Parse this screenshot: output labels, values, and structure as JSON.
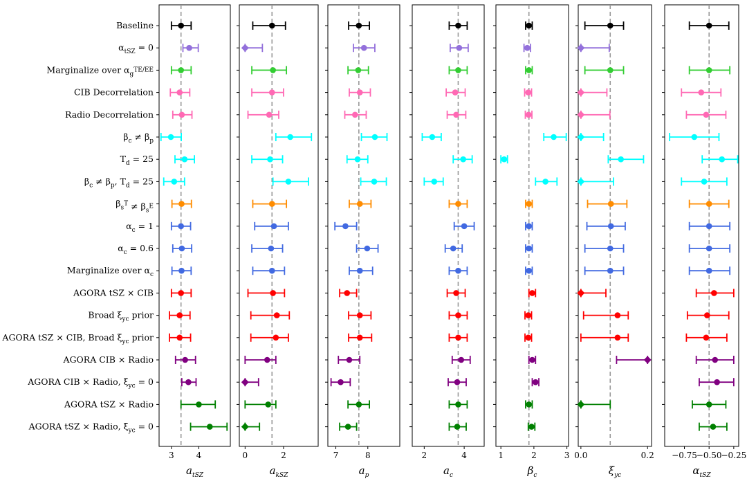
{
  "chart_data": {
    "type": "forest",
    "rows": [
      "Baseline",
      "α_tSZ = 0",
      "Marginalize over α_g^TE/EE",
      "CIB Decorrelation",
      "Radio Decorrelation",
      "β_c ≠ β_p",
      "T_d = 25",
      "β_c ≠ β_p, T_d = 25",
      "β_s^T ≠ β_s^E",
      "α_c = 1",
      "α_c = 0.6",
      "Marginalize over α_c",
      "AGORA tSZ × CIB",
      "Broad ξ_yc prior",
      "AGORA tSZ × CIB, Broad ξ_yc prior",
      "AGORA CIB × Radio",
      "AGORA CIB × Radio, ξ_yc = 0",
      "AGORA tSZ × Radio",
      "AGORA tSZ × Radio, ξ_yc = 0"
    ],
    "row_colors": [
      "#000000",
      "#9370db",
      "#32cd32",
      "#ff69b4",
      "#ff69b4",
      "#00ffff",
      "#00ffff",
      "#00ffff",
      "#ff8c00",
      "#4169e1",
      "#4169e1",
      "#4169e1",
      "#ff0000",
      "#ff0000",
      "#ff0000",
      "#800080",
      "#800080",
      "#008000",
      "#008000"
    ],
    "panels": [
      {
        "xlabel": "a_tSZ",
        "xlim": [
          2.55,
          5.15
        ],
        "ticks": [
          3,
          4
        ],
        "tick_labels": [
          "3",
          "4"
        ],
        "ref": 3.35,
        "points": [
          {
            "v": 3.35,
            "lo": 3.0,
            "hi": 3.72,
            "marker": "o"
          },
          {
            "v": 3.65,
            "lo": 3.42,
            "hi": 3.98,
            "marker": "o"
          },
          {
            "v": 3.35,
            "lo": 3.0,
            "hi": 3.72,
            "marker": "o"
          },
          {
            "v": 3.3,
            "lo": 2.96,
            "hi": 3.67,
            "marker": "o"
          },
          {
            "v": 3.38,
            "lo": 3.05,
            "hi": 3.75,
            "marker": "o"
          },
          {
            "v": 2.98,
            "lo": 2.62,
            "hi": 3.36,
            "marker": "o"
          },
          {
            "v": 3.48,
            "lo": 3.13,
            "hi": 3.84,
            "marker": "o"
          },
          {
            "v": 3.1,
            "lo": 2.72,
            "hi": 3.48,
            "marker": "o"
          },
          {
            "v": 3.37,
            "lo": 3.02,
            "hi": 3.73,
            "marker": "o"
          },
          {
            "v": 3.35,
            "lo": 3.0,
            "hi": 3.7,
            "marker": "o"
          },
          {
            "v": 3.38,
            "lo": 3.05,
            "hi": 3.74,
            "marker": "o"
          },
          {
            "v": 3.37,
            "lo": 3.02,
            "hi": 3.72,
            "marker": "o"
          },
          {
            "v": 3.35,
            "lo": 3.0,
            "hi": 3.72,
            "marker": "o"
          },
          {
            "v": 3.3,
            "lo": 2.93,
            "hi": 3.68,
            "marker": "o"
          },
          {
            "v": 3.3,
            "lo": 2.93,
            "hi": 3.7,
            "marker": "o"
          },
          {
            "v": 3.5,
            "lo": 3.15,
            "hi": 3.88,
            "marker": "o"
          },
          {
            "v": 3.62,
            "lo": 3.38,
            "hi": 3.9,
            "marker": "o"
          },
          {
            "v": 4.0,
            "lo": 3.35,
            "hi": 4.6,
            "marker": "o"
          },
          {
            "v": 4.4,
            "lo": 3.7,
            "hi": 5.03,
            "marker": "o"
          }
        ]
      },
      {
        "xlabel": "a_kSZ",
        "xlim": [
          -0.3,
          3.8
        ],
        "ticks": [
          0,
          2
        ],
        "tick_labels": [
          "0",
          "2"
        ],
        "ref": 1.4,
        "points": [
          {
            "v": 1.4,
            "lo": 0.4,
            "hi": 2.1,
            "marker": "o"
          },
          {
            "v": 0.0,
            "lo": 0.0,
            "hi": 0.9,
            "marker": "d"
          },
          {
            "v": 1.45,
            "lo": 0.35,
            "hi": 2.15,
            "marker": "o"
          },
          {
            "v": 1.4,
            "lo": 0.35,
            "hi": 2.0,
            "marker": "o"
          },
          {
            "v": 1.25,
            "lo": 0.15,
            "hi": 1.75,
            "marker": "o"
          },
          {
            "v": 2.35,
            "lo": 1.6,
            "hi": 3.45,
            "marker": "o"
          },
          {
            "v": 1.3,
            "lo": 0.35,
            "hi": 1.95,
            "marker": "o"
          },
          {
            "v": 2.25,
            "lo": 1.45,
            "hi": 3.3,
            "marker": "o"
          },
          {
            "v": 1.4,
            "lo": 0.4,
            "hi": 2.15,
            "marker": "o"
          },
          {
            "v": 1.5,
            "lo": 0.5,
            "hi": 2.25,
            "marker": "o"
          },
          {
            "v": 1.35,
            "lo": 0.35,
            "hi": 1.95,
            "marker": "o"
          },
          {
            "v": 1.4,
            "lo": 0.4,
            "hi": 2.05,
            "marker": "o"
          },
          {
            "v": 1.45,
            "lo": 0.15,
            "hi": 2.05,
            "marker": "o"
          },
          {
            "v": 1.65,
            "lo": 0.3,
            "hi": 2.3,
            "marker": "o"
          },
          {
            "v": 1.6,
            "lo": 0.3,
            "hi": 2.25,
            "marker": "o"
          },
          {
            "v": 1.15,
            "lo": 0.0,
            "hi": 1.6,
            "marker": "o"
          },
          {
            "v": 0.0,
            "lo": 0.0,
            "hi": 0.7,
            "marker": "d"
          },
          {
            "v": 1.2,
            "lo": 0.0,
            "hi": 1.6,
            "marker": "o"
          },
          {
            "v": 0.0,
            "lo": 0.0,
            "hi": 0.75,
            "marker": "d"
          }
        ]
      },
      {
        "xlabel": "a_p",
        "xlim": [
          6.75,
          9.0
        ],
        "ticks": [
          7,
          8
        ],
        "tick_labels": [
          "7",
          "8"
        ],
        "ref": 7.72,
        "points": [
          {
            "v": 7.72,
            "lo": 7.4,
            "hi": 8.05,
            "marker": "o"
          },
          {
            "v": 7.88,
            "lo": 7.55,
            "hi": 8.22,
            "marker": "o"
          },
          {
            "v": 7.7,
            "lo": 7.38,
            "hi": 8.02,
            "marker": "o"
          },
          {
            "v": 7.75,
            "lo": 7.42,
            "hi": 8.08,
            "marker": "o"
          },
          {
            "v": 7.6,
            "lo": 7.28,
            "hi": 7.95,
            "marker": "o"
          },
          {
            "v": 8.22,
            "lo": 7.8,
            "hi": 8.6,
            "marker": "o"
          },
          {
            "v": 7.68,
            "lo": 7.35,
            "hi": 8.0,
            "marker": "o"
          },
          {
            "v": 8.2,
            "lo": 7.78,
            "hi": 8.58,
            "marker": "o"
          },
          {
            "v": 7.75,
            "lo": 7.42,
            "hi": 8.1,
            "marker": "o"
          },
          {
            "v": 7.3,
            "lo": 6.97,
            "hi": 7.65,
            "marker": "o"
          },
          {
            "v": 7.98,
            "lo": 7.65,
            "hi": 8.32,
            "marker": "o"
          },
          {
            "v": 7.75,
            "lo": 7.42,
            "hi": 8.15,
            "marker": "o"
          },
          {
            "v": 7.35,
            "lo": 7.12,
            "hi": 7.65,
            "marker": "o"
          },
          {
            "v": 7.75,
            "lo": 7.4,
            "hi": 8.1,
            "marker": "o"
          },
          {
            "v": 7.75,
            "lo": 7.4,
            "hi": 8.12,
            "marker": "o"
          },
          {
            "v": 7.42,
            "lo": 7.08,
            "hi": 7.75,
            "marker": "o"
          },
          {
            "v": 7.15,
            "lo": 6.85,
            "hi": 7.45,
            "marker": "o"
          },
          {
            "v": 7.72,
            "lo": 7.38,
            "hi": 8.05,
            "marker": "o"
          },
          {
            "v": 7.38,
            "lo": 7.12,
            "hi": 7.65,
            "marker": "o"
          }
        ]
      },
      {
        "xlabel": "a_c",
        "xlim": [
          1.4,
          5.0
        ],
        "ticks": [
          2,
          4
        ],
        "tick_labels": [
          "2",
          "4"
        ],
        "ref": 3.7,
        "points": [
          {
            "v": 3.7,
            "lo": 3.25,
            "hi": 4.15,
            "marker": "o"
          },
          {
            "v": 3.75,
            "lo": 3.3,
            "hi": 4.2,
            "marker": "o"
          },
          {
            "v": 3.7,
            "lo": 3.25,
            "hi": 4.15,
            "marker": "o"
          },
          {
            "v": 3.55,
            "lo": 3.1,
            "hi": 4.05,
            "marker": "o"
          },
          {
            "v": 3.6,
            "lo": 3.15,
            "hi": 4.08,
            "marker": "o"
          },
          {
            "v": 2.4,
            "lo": 1.9,
            "hi": 2.85,
            "marker": "o"
          },
          {
            "v": 3.95,
            "lo": 3.45,
            "hi": 4.4,
            "marker": "o"
          },
          {
            "v": 2.5,
            "lo": 2.0,
            "hi": 2.95,
            "marker": "o"
          },
          {
            "v": 3.7,
            "lo": 3.25,
            "hi": 4.15,
            "marker": "o"
          },
          {
            "v": 4.0,
            "lo": 3.5,
            "hi": 4.5,
            "marker": "o"
          },
          {
            "v": 3.45,
            "lo": 3.05,
            "hi": 3.9,
            "marker": "o"
          },
          {
            "v": 3.7,
            "lo": 3.25,
            "hi": 4.15,
            "marker": "o"
          },
          {
            "v": 3.6,
            "lo": 3.15,
            "hi": 4.05,
            "marker": "o"
          },
          {
            "v": 3.7,
            "lo": 3.25,
            "hi": 4.15,
            "marker": "o"
          },
          {
            "v": 3.7,
            "lo": 3.25,
            "hi": 4.15,
            "marker": "o"
          },
          {
            "v": 3.85,
            "lo": 3.4,
            "hi": 4.3,
            "marker": "o"
          },
          {
            "v": 3.65,
            "lo": 3.2,
            "hi": 4.1,
            "marker": "o"
          },
          {
            "v": 3.7,
            "lo": 3.25,
            "hi": 4.15,
            "marker": "o"
          },
          {
            "v": 3.65,
            "lo": 3.25,
            "hi": 4.1,
            "marker": "o"
          }
        ]
      },
      {
        "xlabel": "β_c",
        "xlim": [
          0.85,
          3.05
        ],
        "ticks": [
          1,
          2,
          3
        ],
        "tick_labels": [
          "1",
          "2",
          "3"
        ],
        "ref": 1.85,
        "points": [
          {
            "v": 1.85,
            "lo": 1.75,
            "hi": 1.95,
            "marker": "o"
          },
          {
            "v": 1.8,
            "lo": 1.7,
            "hi": 1.9,
            "marker": "o"
          },
          {
            "v": 1.85,
            "lo": 1.75,
            "hi": 1.95,
            "marker": "o"
          },
          {
            "v": 1.83,
            "lo": 1.72,
            "hi": 1.93,
            "marker": "o"
          },
          {
            "v": 1.84,
            "lo": 1.74,
            "hi": 1.94,
            "marker": "o"
          },
          {
            "v": 2.6,
            "lo": 2.3,
            "hi": 2.98,
            "marker": "o"
          },
          {
            "v": 1.1,
            "lo": 1.0,
            "hi": 1.2,
            "marker": "o"
          },
          {
            "v": 2.35,
            "lo": 2.05,
            "hi": 2.7,
            "marker": "o"
          },
          {
            "v": 1.85,
            "lo": 1.75,
            "hi": 1.95,
            "marker": "o"
          },
          {
            "v": 1.85,
            "lo": 1.75,
            "hi": 1.95,
            "marker": "o"
          },
          {
            "v": 1.85,
            "lo": 1.75,
            "hi": 1.95,
            "marker": "o"
          },
          {
            "v": 1.85,
            "lo": 1.75,
            "hi": 1.95,
            "marker": "o"
          },
          {
            "v": 1.95,
            "lo": 1.85,
            "hi": 2.05,
            "marker": "o"
          },
          {
            "v": 1.83,
            "lo": 1.73,
            "hi": 1.93,
            "marker": "o"
          },
          {
            "v": 1.83,
            "lo": 1.73,
            "hi": 1.93,
            "marker": "o"
          },
          {
            "v": 1.95,
            "lo": 1.85,
            "hi": 2.05,
            "marker": "o"
          },
          {
            "v": 2.05,
            "lo": 1.95,
            "hi": 2.15,
            "marker": "o"
          },
          {
            "v": 1.85,
            "lo": 1.75,
            "hi": 1.95,
            "marker": "o"
          },
          {
            "v": 1.93,
            "lo": 1.83,
            "hi": 2.03,
            "marker": "o"
          }
        ]
      },
      {
        "xlabel": "ξ_yc",
        "xlim": [
          -0.008,
          0.212
        ],
        "ticks": [
          0.0,
          0.2
        ],
        "tick_labels": [
          "0.0",
          "0.2"
        ],
        "ref": 0.088,
        "points": [
          {
            "v": 0.088,
            "lo": 0.012,
            "hi": 0.128,
            "marker": "o"
          },
          {
            "v": 0.0,
            "lo": 0.0,
            "hi": 0.085,
            "marker": "d"
          },
          {
            "v": 0.088,
            "lo": 0.012,
            "hi": 0.128,
            "marker": "o"
          },
          {
            "v": 0.0,
            "lo": 0.0,
            "hi": 0.078,
            "marker": "d"
          },
          {
            "v": 0.0,
            "lo": 0.0,
            "hi": 0.087,
            "marker": "d"
          },
          {
            "v": 0.0,
            "lo": 0.0,
            "hi": 0.068,
            "marker": "d"
          },
          {
            "v": 0.12,
            "lo": 0.082,
            "hi": 0.188,
            "marker": "o"
          },
          {
            "v": 0.0,
            "lo": 0.0,
            "hi": 0.098,
            "marker": "d"
          },
          {
            "v": 0.09,
            "lo": 0.02,
            "hi": 0.138,
            "marker": "o"
          },
          {
            "v": 0.09,
            "lo": 0.018,
            "hi": 0.133,
            "marker": "o"
          },
          {
            "v": 0.088,
            "lo": 0.012,
            "hi": 0.128,
            "marker": "o"
          },
          {
            "v": 0.088,
            "lo": 0.012,
            "hi": 0.128,
            "marker": "o"
          },
          {
            "v": 0.0,
            "lo": 0.0,
            "hi": 0.075,
            "marker": "d"
          },
          {
            "v": 0.11,
            "lo": 0.008,
            "hi": 0.142,
            "marker": "o"
          },
          {
            "v": 0.11,
            "lo": 0.0,
            "hi": 0.142,
            "marker": "o"
          },
          {
            "v": 0.2,
            "lo": 0.107,
            "hi": 0.2,
            "marker": "d"
          },
          {
            "v": null,
            "lo": null,
            "hi": null,
            "marker": "o"
          },
          {
            "v": 0.0,
            "lo": 0.0,
            "hi": 0.088,
            "marker": "d"
          },
          {
            "v": null,
            "lo": null,
            "hi": null,
            "marker": "o"
          }
        ]
      },
      {
        "xlabel": "α_tSZ",
        "xlim": [
          -0.95,
          -0.2
        ],
        "ticks": [
          -0.75,
          -0.5,
          -0.25
        ],
        "tick_labels": [
          "−0.75",
          "−0.50",
          "−0.25"
        ],
        "ref": -0.5,
        "points": [
          {
            "v": -0.5,
            "lo": -0.7,
            "hi": -0.3,
            "marker": "o"
          },
          {
            "v": null,
            "lo": null,
            "hi": null,
            "marker": "o"
          },
          {
            "v": -0.5,
            "lo": -0.7,
            "hi": -0.29,
            "marker": "o"
          },
          {
            "v": -0.58,
            "lo": -0.78,
            "hi": -0.38,
            "marker": "o"
          },
          {
            "v": -0.53,
            "lo": -0.73,
            "hi": -0.33,
            "marker": "o"
          },
          {
            "v": -0.65,
            "lo": -0.9,
            "hi": -0.4,
            "marker": "o"
          },
          {
            "v": -0.37,
            "lo": -0.57,
            "hi": -0.21,
            "marker": "o"
          },
          {
            "v": -0.55,
            "lo": -0.78,
            "hi": -0.32,
            "marker": "o"
          },
          {
            "v": -0.5,
            "lo": -0.7,
            "hi": -0.3,
            "marker": "o"
          },
          {
            "v": -0.5,
            "lo": -0.7,
            "hi": -0.29,
            "marker": "o"
          },
          {
            "v": -0.5,
            "lo": -0.7,
            "hi": -0.29,
            "marker": "o"
          },
          {
            "v": -0.5,
            "lo": -0.7,
            "hi": -0.29,
            "marker": "o"
          },
          {
            "v": -0.45,
            "lo": -0.63,
            "hi": -0.25,
            "marker": "o"
          },
          {
            "v": -0.52,
            "lo": -0.72,
            "hi": -0.3,
            "marker": "o"
          },
          {
            "v": -0.53,
            "lo": -0.73,
            "hi": -0.32,
            "marker": "o"
          },
          {
            "v": -0.44,
            "lo": -0.63,
            "hi": -0.25,
            "marker": "o"
          },
          {
            "v": -0.42,
            "lo": -0.6,
            "hi": -0.25,
            "marker": "o"
          },
          {
            "v": -0.5,
            "lo": -0.67,
            "hi": -0.33,
            "marker": "o"
          },
          {
            "v": -0.46,
            "lo": -0.6,
            "hi": -0.32,
            "marker": "o"
          }
        ]
      }
    ]
  }
}
